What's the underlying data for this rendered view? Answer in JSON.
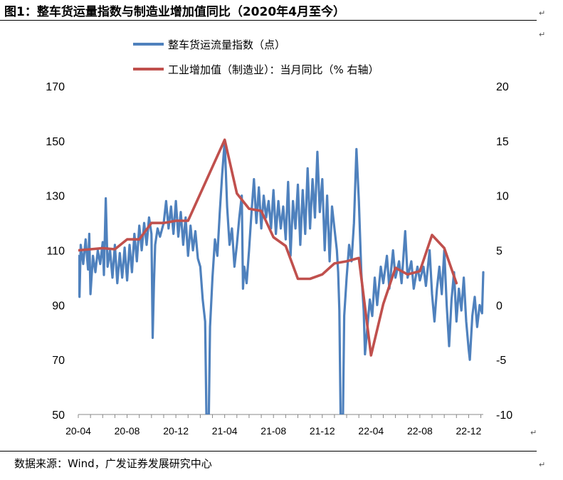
{
  "figure": {
    "title": "图1：整车货运量指数与制造业增加值同比（2020年4月至今）",
    "source": "数据来源：Wind，广发证券发展研究中心",
    "para_mark": "↵"
  },
  "chart_data": {
    "type": "line",
    "title": "图1：整车货运量指数与制造业增加值同比（2020年4月至今）",
    "xlabel": "",
    "ylabel_left": "",
    "ylabel_right": "",
    "legend_position": "top-center",
    "grid": false,
    "x_tick_labels": [
      "20-04",
      "20-08",
      "20-12",
      "21-04",
      "21-08",
      "21-12",
      "22-04",
      "22-08",
      "22-12"
    ],
    "y_left": {
      "ticks": [
        50,
        70,
        90,
        110,
        130,
        150,
        170
      ],
      "range": [
        50,
        170
      ]
    },
    "y_right": {
      "ticks": [
        -10,
        -5,
        0,
        5,
        10,
        15,
        20
      ],
      "range": [
        -10,
        20
      ]
    },
    "x_range_months": [
      0,
      33.2
    ],
    "series": [
      {
        "name": "整车货运流量指数（点）",
        "axis": "left",
        "color": "#4F81BD",
        "note": "daily index; approximate key points (month index from 2020-04, value)",
        "points": [
          [
            0.0,
            108
          ],
          [
            0.1,
            93
          ],
          [
            0.2,
            112
          ],
          [
            0.4,
            105
          ],
          [
            0.6,
            114
          ],
          [
            0.8,
            103
          ],
          [
            0.9,
            116
          ],
          [
            1.0,
            94
          ],
          [
            1.2,
            108
          ],
          [
            1.4,
            102
          ],
          [
            1.6,
            110
          ],
          [
            1.8,
            105
          ],
          [
            2.0,
            113
          ],
          [
            2.1,
            101
          ],
          [
            2.25,
            129
          ],
          [
            2.4,
            104
          ],
          [
            2.6,
            110
          ],
          [
            2.8,
            100
          ],
          [
            3.0,
            112
          ],
          [
            3.2,
            98
          ],
          [
            3.4,
            109
          ],
          [
            3.6,
            100
          ],
          [
            3.8,
            111
          ],
          [
            4.0,
            99
          ],
          [
            4.2,
            112
          ],
          [
            4.4,
            102
          ],
          [
            4.6,
            116
          ],
          [
            4.8,
            106
          ],
          [
            5.0,
            119
          ],
          [
            5.2,
            110
          ],
          [
            5.4,
            120
          ],
          [
            5.6,
            112
          ],
          [
            5.8,
            122
          ],
          [
            6.0,
            116
          ],
          [
            6.1,
            78
          ],
          [
            6.2,
            98
          ],
          [
            6.3,
            112
          ],
          [
            6.5,
            118
          ],
          [
            6.7,
            115
          ],
          [
            7.0,
            120
          ],
          [
            7.2,
            128
          ],
          [
            7.4,
            118
          ],
          [
            7.6,
            126
          ],
          [
            7.8,
            116
          ],
          [
            8.0,
            128
          ],
          [
            8.2,
            115
          ],
          [
            8.4,
            124
          ],
          [
            8.6,
            112
          ],
          [
            8.8,
            122
          ],
          [
            9.0,
            108
          ],
          [
            9.2,
            119
          ],
          [
            9.4,
            110
          ],
          [
            9.6,
            117
          ],
          [
            9.8,
            107
          ],
          [
            10.0,
            104
          ],
          [
            10.2,
            92
          ],
          [
            10.4,
            84
          ],
          [
            10.5,
            50
          ],
          [
            10.7,
            50
          ],
          [
            10.8,
            82
          ],
          [
            11.0,
            100
          ],
          [
            11.2,
            114
          ],
          [
            11.4,
            108
          ],
          [
            11.6,
            124
          ],
          [
            11.8,
            138
          ],
          [
            12.0,
            150
          ],
          [
            12.2,
            126
          ],
          [
            12.4,
            112
          ],
          [
            12.6,
            118
          ],
          [
            12.8,
            104
          ],
          [
            13.0,
            112
          ],
          [
            13.2,
            122
          ],
          [
            13.4,
            130
          ],
          [
            13.5,
            96
          ],
          [
            13.6,
            104
          ],
          [
            13.8,
            98
          ],
          [
            14.0,
            110
          ],
          [
            14.2,
            124
          ],
          [
            14.4,
            136
          ],
          [
            14.6,
            120
          ],
          [
            14.8,
            133
          ],
          [
            15.0,
            118
          ],
          [
            15.2,
            130
          ],
          [
            15.4,
            122
          ],
          [
            15.6,
            128
          ],
          [
            15.8,
            118
          ],
          [
            16.0,
            132
          ],
          [
            16.2,
            116
          ],
          [
            16.4,
            128
          ],
          [
            16.6,
            118
          ],
          [
            16.8,
            126
          ],
          [
            17.0,
            114
          ],
          [
            17.2,
            135
          ],
          [
            17.4,
            108
          ],
          [
            17.6,
            128
          ],
          [
            17.8,
            118
          ],
          [
            18.0,
            134
          ],
          [
            18.2,
            112
          ],
          [
            18.4,
            132
          ],
          [
            18.6,
            116
          ],
          [
            18.8,
            140
          ],
          [
            19.0,
            118
          ],
          [
            19.2,
            136
          ],
          [
            19.4,
            122
          ],
          [
            19.6,
            146
          ],
          [
            19.8,
            124
          ],
          [
            20.0,
            136
          ],
          [
            20.2,
            110
          ],
          [
            20.4,
            130
          ],
          [
            20.6,
            106
          ],
          [
            20.8,
            126
          ],
          [
            21.0,
            118
          ],
          [
            21.2,
            110
          ],
          [
            21.3,
            102
          ],
          [
            21.4,
            88
          ],
          [
            21.5,
            50
          ],
          [
            21.7,
            50
          ],
          [
            21.8,
            86
          ],
          [
            22.0,
            100
          ],
          [
            22.2,
            112
          ],
          [
            22.4,
            106
          ],
          [
            22.6,
            120
          ],
          [
            22.8,
            147
          ],
          [
            23.0,
            128
          ],
          [
            23.2,
            102
          ],
          [
            23.4,
            88
          ],
          [
            23.5,
            72
          ],
          [
            23.7,
            82
          ],
          [
            23.9,
            92
          ],
          [
            24.1,
            86
          ],
          [
            24.3,
            100
          ],
          [
            24.5,
            90
          ],
          [
            24.8,
            104
          ],
          [
            25.0,
            98
          ],
          [
            25.3,
            108
          ],
          [
            25.5,
            96
          ],
          [
            25.8,
            110
          ],
          [
            26.0,
            100
          ],
          [
            26.3,
            106
          ],
          [
            26.5,
            98
          ],
          [
            26.8,
            117
          ],
          [
            27.0,
            100
          ],
          [
            27.3,
            106
          ],
          [
            27.5,
            96
          ],
          [
            27.8,
            104
          ],
          [
            28.0,
            99
          ],
          [
            28.3,
            104
          ],
          [
            28.5,
            97
          ],
          [
            28.8,
            110
          ],
          [
            29.0,
            94
          ],
          [
            29.2,
            84
          ],
          [
            29.4,
            96
          ],
          [
            29.6,
            104
          ],
          [
            29.8,
            94
          ],
          [
            30.0,
            110
          ],
          [
            30.2,
            90
          ],
          [
            30.4,
            75
          ],
          [
            30.6,
            92
          ],
          [
            30.8,
            102
          ],
          [
            31.0,
            84
          ],
          [
            31.2,
            96
          ],
          [
            31.4,
            88
          ],
          [
            31.6,
            100
          ],
          [
            31.8,
            84
          ],
          [
            32.0,
            74
          ],
          [
            32.1,
            70
          ],
          [
            32.3,
            86
          ],
          [
            32.5,
            93
          ],
          [
            32.7,
            82
          ],
          [
            32.9,
            90
          ],
          [
            33.1,
            87
          ],
          [
            33.2,
            102
          ]
        ]
      },
      {
        "name": "工业增加值（制造业）：当月同比（% 右轴）",
        "axis": "right",
        "color": "#C0504D",
        "points": [
          [
            0,
            5.0
          ],
          [
            1,
            5.1
          ],
          [
            2,
            5.2
          ],
          [
            3,
            5.1
          ],
          [
            4,
            6.0
          ],
          [
            5,
            6.0
          ],
          [
            6,
            7.5
          ],
          [
            7,
            7.5
          ],
          [
            8,
            7.7
          ],
          [
            9,
            7.7
          ],
          [
            12,
            15.1
          ],
          [
            13,
            10.2
          ],
          [
            14,
            8.8
          ],
          [
            15,
            8.6
          ],
          [
            16,
            6.2
          ],
          [
            17,
            5.4
          ],
          [
            18,
            2.4
          ],
          [
            19,
            2.4
          ],
          [
            20,
            2.8
          ],
          [
            21,
            3.8
          ],
          [
            22,
            4.0
          ],
          [
            23,
            4.3
          ],
          [
            24,
            -4.6
          ],
          [
            25,
            0.1
          ],
          [
            26,
            3.4
          ],
          [
            27,
            2.8
          ],
          [
            28,
            3.1
          ],
          [
            29,
            6.4
          ],
          [
            30,
            5.2
          ],
          [
            31,
            2.0
          ]
        ]
      }
    ]
  }
}
